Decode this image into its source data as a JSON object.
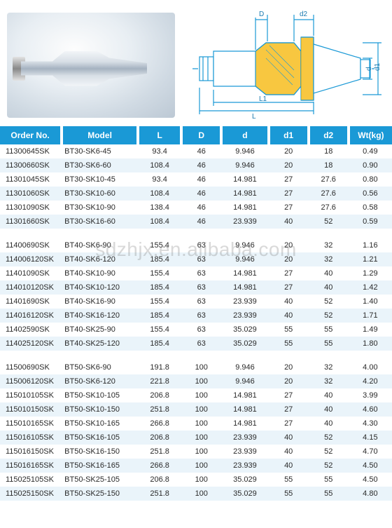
{
  "watermark": "sdzhjx.en.alibaba.com",
  "diagram": {
    "labels": {
      "D": "D",
      "d2": "d2",
      "d1": "d1",
      "d": "d",
      "L": "L",
      "L1": "L1"
    },
    "line_color": "#1a99d6",
    "fill_color": "#f5b400",
    "stroke_width": 1.2
  },
  "table": {
    "header_bg": "#1a99d6",
    "header_fg": "#ffffff",
    "row_alt_bg": "#eaf4fa",
    "font_size": 11,
    "columns": [
      "Order No.",
      "Model",
      "L",
      "D",
      "d",
      "d1",
      "d2",
      "Wt(kg)"
    ],
    "groups": [
      {
        "rows": [
          [
            "11300645SK",
            "BT30-SK6-45",
            "93.4",
            "46",
            "9.946",
            "20",
            "18",
            "0.49"
          ],
          [
            "11300660SK",
            "BT30-SK6-60",
            "108.4",
            "46",
            "9.946",
            "20",
            "18",
            "0.90"
          ],
          [
            "11301045SK",
            "BT30-SK10-45",
            "93.4",
            "46",
            "14.981",
            "27",
            "27.6",
            "0.80"
          ],
          [
            "11301060SK",
            "BT30-SK10-60",
            "108.4",
            "46",
            "14.981",
            "27",
            "27.6",
            "0.56"
          ],
          [
            "11301090SK",
            "BT30-SK10-90",
            "138.4",
            "46",
            "14.981",
            "27",
            "27.6",
            "0.58"
          ],
          [
            "11301660SK",
            "BT30-SK16-60",
            "108.4",
            "46",
            "23.939",
            "40",
            "52",
            "0.59"
          ]
        ]
      },
      {
        "rows": [
          [
            "11400690SK",
            "BT40-SK6-90",
            "155.4",
            "63",
            "9.946",
            "20",
            "32",
            "1.16"
          ],
          [
            "114006120SK",
            "BT40-SK6-120",
            "185.4",
            "63",
            "9.946",
            "20",
            "32",
            "1.21"
          ],
          [
            "11401090SK",
            "BT40-SK10-90",
            "155.4",
            "63",
            "14.981",
            "27",
            "40",
            "1.29"
          ],
          [
            "114010120SK",
            "BT40-SK10-120",
            "185.4",
            "63",
            "14.981",
            "27",
            "40",
            "1.42"
          ],
          [
            "11401690SK",
            "BT40-SK16-90",
            "155.4",
            "63",
            "23.939",
            "40",
            "52",
            "1.40"
          ],
          [
            "114016120SK",
            "BT40-SK16-120",
            "185.4",
            "63",
            "23.939",
            "40",
            "52",
            "1.71"
          ],
          [
            "11402590SK",
            "BT40-SK25-90",
            "155.4",
            "63",
            "35.029",
            "55",
            "55",
            "1.49"
          ],
          [
            "114025120SK",
            "BT40-SK25-120",
            "185.4",
            "63",
            "35.029",
            "55",
            "55",
            "1.80"
          ]
        ]
      },
      {
        "rows": [
          [
            "11500690SK",
            "BT50-SK6-90",
            "191.8",
            "100",
            "9.946",
            "20",
            "32",
            "4.00"
          ],
          [
            "115006120SK",
            "BT50-SK6-120",
            "221.8",
            "100",
            "9.946",
            "20",
            "32",
            "4.20"
          ],
          [
            "115010105SK",
            "BT50-SK10-105",
            "206.8",
            "100",
            "14.981",
            "27",
            "40",
            "3.99"
          ],
          [
            "115010150SK",
            "BT50-SK10-150",
            "251.8",
            "100",
            "14.981",
            "27",
            "40",
            "4.60"
          ],
          [
            "115010165SK",
            "BT50-SK10-165",
            "266.8",
            "100",
            "14.981",
            "27",
            "40",
            "4.30"
          ],
          [
            "115016105SK",
            "BT50-SK16-105",
            "206.8",
            "100",
            "23.939",
            "40",
            "52",
            "4.15"
          ],
          [
            "115016150SK",
            "BT50-SK16-150",
            "251.8",
            "100",
            "23.939",
            "40",
            "52",
            "4.70"
          ],
          [
            "115016165SK",
            "BT50-SK16-165",
            "266.8",
            "100",
            "23.939",
            "40",
            "52",
            "4.50"
          ],
          [
            "115025105SK",
            "BT50-SK25-105",
            "206.8",
            "100",
            "35.029",
            "55",
            "55",
            "4.50"
          ],
          [
            "115025150SK",
            "BT50-SK25-150",
            "251.8",
            "100",
            "35.029",
            "55",
            "55",
            "4.80"
          ]
        ]
      }
    ]
  }
}
